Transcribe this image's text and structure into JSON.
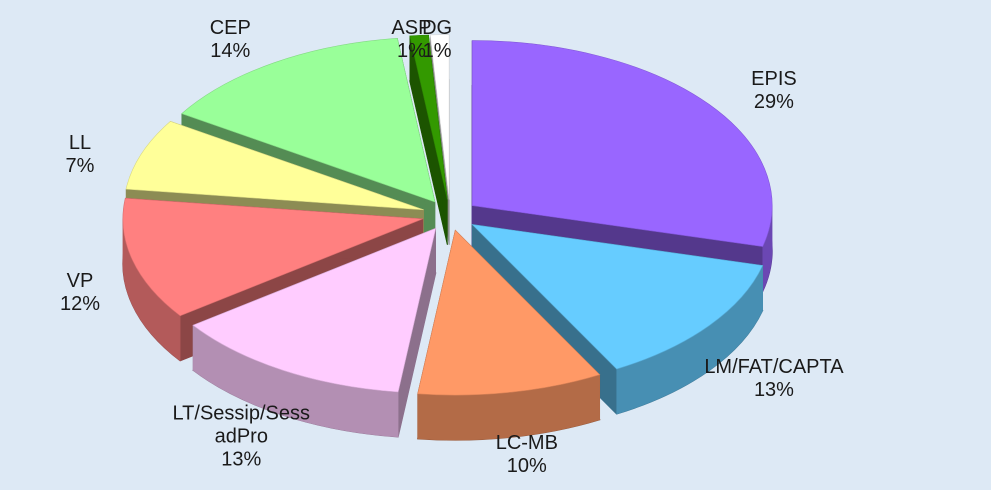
{
  "chart_data": {
    "type": "pie3d",
    "categories": [
      "EPIS",
      "LM/FAT/CAPTA",
      "LC-MB",
      "LT/Sessip/Sess\nadPro",
      "VP",
      "LL",
      "CEP",
      "ASP",
      "DG"
    ],
    "values": [
      29,
      13,
      10,
      13,
      12,
      7,
      14,
      1,
      1
    ],
    "value_labels": [
      "29%",
      "13%",
      "10%",
      "13%",
      "12%",
      "7%",
      "14%",
      "1%",
      "1%"
    ],
    "colors": [
      "#9966ff",
      "#66ccff",
      "#ff9966",
      "#ffccff",
      "#ff8080",
      "#ffff99",
      "#99ff99",
      "#339900",
      "#ffffff"
    ]
  }
}
